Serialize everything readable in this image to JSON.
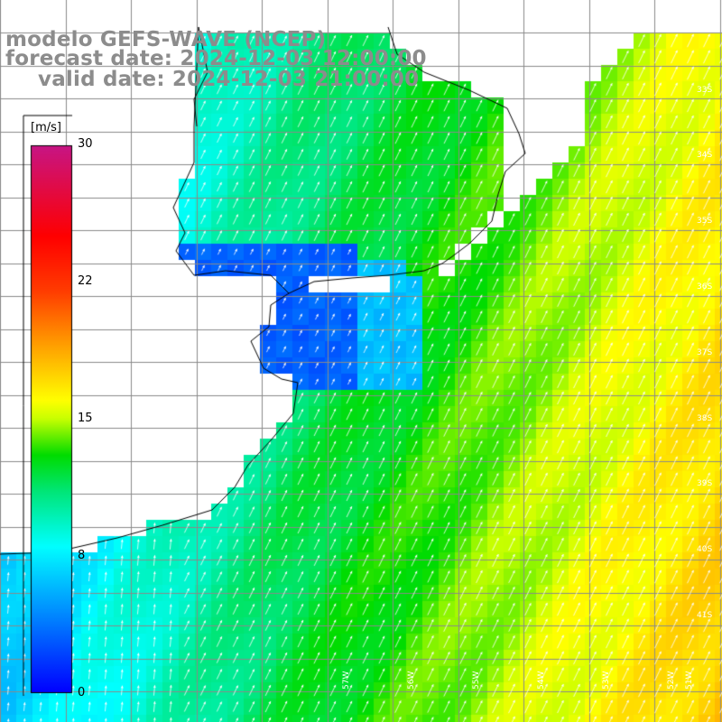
{
  "title": {
    "line1": "modelo GEFS-WAVE (NCEP)",
    "line2": "forecast date: 2024-12-03 12:00:00",
    "line3": "valid date: 2024-12-03 21:00:00"
  },
  "colorbar": {
    "unit": "[m/s]",
    "ticks": [
      "30",
      "22",
      "15",
      "8",
      "0"
    ],
    "tick_values": [
      30,
      22,
      15,
      8,
      0
    ],
    "range": [
      0,
      30
    ],
    "colors": [
      "#0000ff",
      "#00ffff",
      "#00ee00",
      "#ffff00",
      "#ff8000",
      "#ff0000",
      "#c71585"
    ]
  },
  "axes": {
    "latitude_labels": [
      "33S",
      "34S",
      "35S",
      "36S",
      "37S",
      "38S",
      "39S",
      "40S",
      "41S"
    ],
    "longitude_labels": [
      "57W",
      "56W",
      "55W",
      "54W",
      "53W",
      "52W",
      "51W"
    ]
  },
  "colors": {
    "land": "#ffffff",
    "coastline": "#000000",
    "grid": "#888888",
    "arrows": "#ffffff",
    "title_text": "#8c8c8c"
  }
}
